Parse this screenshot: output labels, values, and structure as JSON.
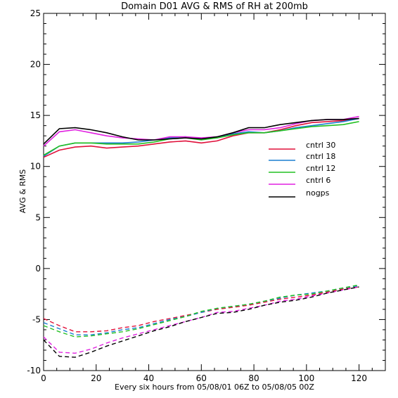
{
  "chart_data": {
    "type": "line",
    "title": "Domain D01 AVG & RMS of RH at 200mb",
    "xlabel": "Every six hours from 05/08/01 06Z to 05/08/05 00Z",
    "ylabel": "AVG & RMS",
    "xlim": [
      0,
      130
    ],
    "ylim": [
      -10,
      25
    ],
    "xticks": [
      0,
      20,
      40,
      60,
      80,
      100,
      120
    ],
    "yticks": [
      -10,
      -5,
      0,
      5,
      10,
      15,
      20,
      25
    ],
    "grid": false,
    "legend_position": "right",
    "x": [
      0,
      6,
      12,
      18,
      24,
      30,
      36,
      42,
      48,
      54,
      60,
      66,
      72,
      78,
      84,
      90,
      96,
      102,
      108,
      114,
      120
    ],
    "series": [
      {
        "name": "cntrl 30",
        "color": "#e0103a",
        "avg": [
          10.9,
          11.6,
          11.9,
          12.0,
          11.8,
          11.9,
          12.0,
          12.2,
          12.4,
          12.5,
          12.3,
          12.5,
          13.0,
          13.3,
          13.3,
          13.6,
          14.0,
          14.3,
          14.4,
          14.5,
          14.7
        ],
        "rms": [
          -4.9,
          -5.6,
          -6.2,
          -6.2,
          -6.1,
          -5.8,
          -5.6,
          -5.2,
          -4.9,
          -4.6,
          -4.3,
          -4.0,
          -3.8,
          -3.6,
          -3.3,
          -3.0,
          -2.8,
          -2.6,
          -2.3,
          -2.0,
          -1.8
        ]
      },
      {
        "name": "cntrl 18",
        "color": "#1a7fd0",
        "avg": [
          11.0,
          12.0,
          12.3,
          12.3,
          12.3,
          12.3,
          12.4,
          12.6,
          12.8,
          12.9,
          12.7,
          12.8,
          13.2,
          13.4,
          13.3,
          13.5,
          13.8,
          14.0,
          14.2,
          14.4,
          14.7
        ],
        "rms": [
          -5.3,
          -5.9,
          -6.5,
          -6.5,
          -6.3,
          -6.0,
          -5.8,
          -5.4,
          -5.0,
          -4.7,
          -4.3,
          -3.9,
          -3.7,
          -3.5,
          -3.2,
          -2.9,
          -2.6,
          -2.4,
          -2.2,
          -1.9,
          -1.7
        ]
      },
      {
        "name": "cntrl 12",
        "color": "#22c022",
        "avg": [
          11.1,
          12.0,
          12.3,
          12.3,
          12.2,
          12.2,
          12.2,
          12.4,
          12.7,
          12.8,
          12.6,
          12.8,
          13.1,
          13.3,
          13.3,
          13.5,
          13.7,
          13.9,
          14.0,
          14.1,
          14.4
        ],
        "rms": [
          -5.6,
          -6.2,
          -6.7,
          -6.6,
          -6.4,
          -6.2,
          -5.9,
          -5.5,
          -5.1,
          -4.7,
          -4.2,
          -3.9,
          -3.7,
          -3.5,
          -3.2,
          -2.8,
          -2.6,
          -2.5,
          -2.2,
          -1.9,
          -1.6
        ]
      },
      {
        "name": "cntrl 6",
        "color": "#e020e0",
        "avg": [
          12.0,
          13.4,
          13.6,
          13.3,
          13.0,
          12.8,
          12.7,
          12.6,
          12.9,
          12.9,
          12.8,
          12.9,
          13.3,
          13.6,
          13.6,
          13.8,
          14.2,
          14.5,
          14.6,
          14.6,
          14.9
        ],
        "rms": [
          -6.7,
          -8.2,
          -8.3,
          -7.9,
          -7.3,
          -6.8,
          -6.4,
          -6.0,
          -5.6,
          -5.2,
          -4.8,
          -4.3,
          -4.2,
          -3.9,
          -3.6,
          -3.2,
          -3.0,
          -2.7,
          -2.4,
          -2.1,
          -1.8
        ]
      },
      {
        "name": "nogps",
        "color": "#000000",
        "avg": [
          12.2,
          13.7,
          13.8,
          13.6,
          13.3,
          12.9,
          12.6,
          12.6,
          12.7,
          12.8,
          12.7,
          12.9,
          13.3,
          13.8,
          13.8,
          14.1,
          14.3,
          14.5,
          14.6,
          14.6,
          14.7
        ],
        "rms": [
          -7.0,
          -8.6,
          -8.7,
          -8.2,
          -7.6,
          -7.1,
          -6.6,
          -6.1,
          -5.7,
          -5.2,
          -4.8,
          -4.4,
          -4.3,
          -4.0,
          -3.6,
          -3.3,
          -3.1,
          -2.8,
          -2.4,
          -2.1,
          -1.8
        ]
      }
    ]
  }
}
